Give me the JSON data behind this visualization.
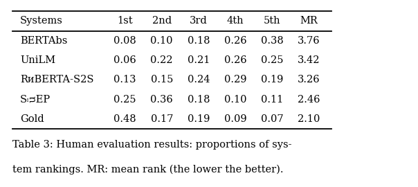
{
  "columns": [
    "Systems",
    "1st",
    "2nd",
    "3rd",
    "4th",
    "5th",
    "MR"
  ],
  "rows": [
    [
      "BERTAbs",
      "0.08",
      "0.10",
      "0.18",
      "0.26",
      "0.38",
      "3.76"
    ],
    [
      "UniLM",
      "0.06",
      "0.22",
      "0.21",
      "0.26",
      "0.25",
      "3.42"
    ],
    [
      "RᴎBERTA-S2S",
      "0.13",
      "0.15",
      "0.24",
      "0.29",
      "0.19",
      "3.26"
    ],
    [
      "SᴞEP",
      "0.25",
      "0.36",
      "0.18",
      "0.10",
      "0.11",
      "2.46"
    ],
    [
      "Gold",
      "0.48",
      "0.17",
      "0.19",
      "0.09",
      "0.07",
      "2.10"
    ]
  ],
  "caption_line1": "Table 3: Human evaluation results: proportions of sys-",
  "caption_line2": "tem rankings. MR: mean rank (the lower the better).",
  "background_color": "#ffffff",
  "text_color": "#000000",
  "figsize": [
    6.04,
    2.7
  ],
  "dpi": 100,
  "font_size": 10.5
}
